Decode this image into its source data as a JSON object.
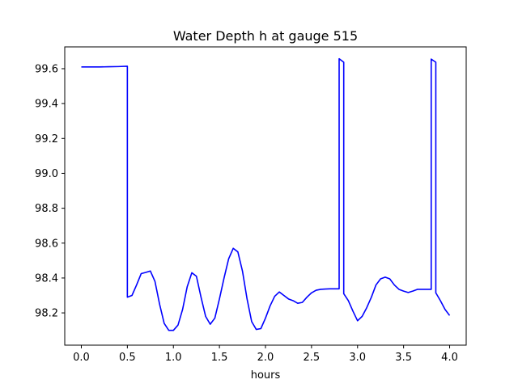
{
  "chart_data": {
    "type": "line",
    "title": "Water Depth h at gauge 515",
    "xlabel": "hours",
    "ylabel": "",
    "xlim": [
      -0.18,
      4.18
    ],
    "ylim": [
      98.015,
      99.725
    ],
    "xticks": [
      0.0,
      0.5,
      1.0,
      1.5,
      2.0,
      2.5,
      3.0,
      3.5,
      4.0
    ],
    "xtick_labels": [
      "0.0",
      "0.5",
      "1.0",
      "1.5",
      "2.0",
      "2.5",
      "3.0",
      "3.5",
      "4.0"
    ],
    "yticks": [
      98.2,
      98.4,
      98.6,
      98.8,
      99.0,
      99.2,
      99.4,
      99.6
    ],
    "ytick_labels": [
      "98.2",
      "98.4",
      "98.6",
      "98.8",
      "99.0",
      "99.2",
      "99.4",
      "99.6"
    ],
    "grid": false,
    "series": [
      {
        "color": "#0000ff",
        "x": [
          0.0,
          0.1,
          0.2,
          0.3,
          0.4,
          0.5,
          0.5,
          0.55,
          0.6,
          0.65,
          0.7,
          0.75,
          0.8,
          0.85,
          0.9,
          0.95,
          1.0,
          1.05,
          1.1,
          1.15,
          1.2,
          1.25,
          1.3,
          1.35,
          1.4,
          1.45,
          1.5,
          1.55,
          1.6,
          1.65,
          1.7,
          1.75,
          1.8,
          1.85,
          1.9,
          1.95,
          2.0,
          2.05,
          2.1,
          2.15,
          2.2,
          2.25,
          2.3,
          2.35,
          2.4,
          2.45,
          2.5,
          2.55,
          2.6,
          2.65,
          2.7,
          2.75,
          2.8,
          2.8,
          2.85,
          2.85,
          2.9,
          2.95,
          3.0,
          3.05,
          3.1,
          3.15,
          3.2,
          3.25,
          3.3,
          3.35,
          3.4,
          3.45,
          3.5,
          3.55,
          3.6,
          3.65,
          3.7,
          3.75,
          3.8,
          3.8,
          3.85,
          3.85,
          3.9,
          3.95,
          4.0
        ],
        "y": [
          99.61,
          99.61,
          99.61,
          99.611,
          99.612,
          99.614,
          98.29,
          98.3,
          98.36,
          98.425,
          98.432,
          98.44,
          98.38,
          98.25,
          98.14,
          98.1,
          98.1,
          98.13,
          98.22,
          98.35,
          98.43,
          98.41,
          98.29,
          98.18,
          98.135,
          98.17,
          98.28,
          98.4,
          98.51,
          98.57,
          98.55,
          98.44,
          98.28,
          98.15,
          98.105,
          98.11,
          98.17,
          98.24,
          98.295,
          98.32,
          98.3,
          98.28,
          98.27,
          98.255,
          98.26,
          98.29,
          98.315,
          98.33,
          98.335,
          98.337,
          98.338,
          98.338,
          98.338,
          99.657,
          99.637,
          98.31,
          98.27,
          98.21,
          98.155,
          98.18,
          98.23,
          98.29,
          98.36,
          98.395,
          98.405,
          98.395,
          98.36,
          98.335,
          98.325,
          98.317,
          98.325,
          98.335,
          98.335,
          98.335,
          98.335,
          99.655,
          99.637,
          98.315,
          98.27,
          98.22,
          98.185
        ]
      }
    ]
  }
}
